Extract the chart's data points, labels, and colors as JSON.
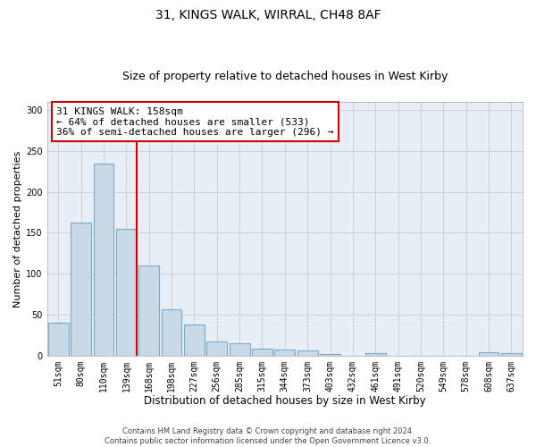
{
  "title1": "31, KINGS WALK, WIRRAL, CH48 8AF",
  "title2": "Size of property relative to detached houses in West Kirby",
  "xlabel": "Distribution of detached houses by size in West Kirby",
  "ylabel": "Number of detached properties",
  "bar_labels": [
    "51sqm",
    "80sqm",
    "110sqm",
    "139sqm",
    "168sqm",
    "198sqm",
    "227sqm",
    "256sqm",
    "285sqm",
    "315sqm",
    "344sqm",
    "373sqm",
    "403sqm",
    "432sqm",
    "461sqm",
    "491sqm",
    "520sqm",
    "549sqm",
    "578sqm",
    "608sqm",
    "637sqm"
  ],
  "bar_values": [
    40,
    163,
    235,
    155,
    110,
    57,
    38,
    17,
    15,
    8,
    7,
    6,
    2,
    0,
    3,
    0,
    0,
    0,
    0,
    4,
    3
  ],
  "bar_color": "#c9d9e8",
  "bar_edge_color": "#7aaac8",
  "vline_color": "#cc0000",
  "annotation_text": "31 KINGS WALK: 158sqm\n← 64% of detached houses are smaller (533)\n36% of semi-detached houses are larger (296) →",
  "annotation_box_color": "#ffffff",
  "annotation_box_edge": "#cc0000",
  "ylim": [
    0,
    310
  ],
  "yticks": [
    0,
    50,
    100,
    150,
    200,
    250,
    300
  ],
  "grid_color": "#c8d0dc",
  "background_color": "#e8eef5",
  "footer_text": "Contains HM Land Registry data © Crown copyright and database right 2024.\nContains public sector information licensed under the Open Government Licence v3.0.",
  "title1_fontsize": 10,
  "title2_fontsize": 9,
  "xlabel_fontsize": 8.5,
  "ylabel_fontsize": 8,
  "tick_fontsize": 7,
  "annotation_fontsize": 8,
  "footer_fontsize": 6
}
